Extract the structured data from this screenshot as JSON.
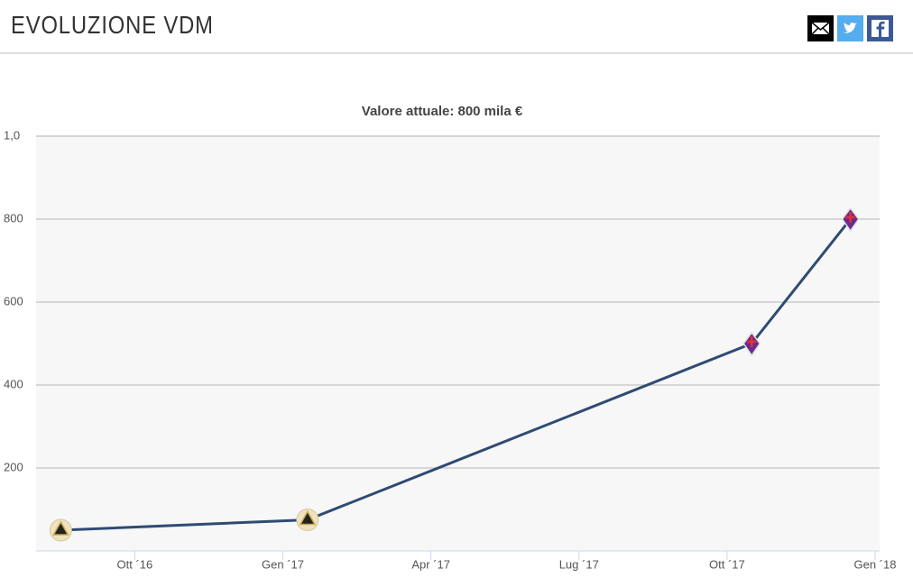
{
  "header": {
    "title": "EVOLUZIONE VDM"
  },
  "chart_data": {
    "type": "line",
    "title": "Valore attuale: 800 mila €",
    "x": [
      "2016-08",
      "2017-01",
      "2017-10",
      "2017-12"
    ],
    "series": [
      {
        "name": "VDM",
        "color": "#2f4b73",
        "values": [
          50,
          75,
          500,
          800
        ]
      }
    ],
    "xlim": [
      "2016-08",
      "2018-01"
    ],
    "xticks": [
      {
        "value": "2016-10",
        "label": "Ott ´16"
      },
      {
        "value": "2017-01",
        "label": "Gen ´17"
      },
      {
        "value": "2017-04",
        "label": "Apr ´17"
      },
      {
        "value": "2017-07",
        "label": "Lug ´17"
      },
      {
        "value": "2017-10",
        "label": "Ott ´17"
      },
      {
        "value": "2018-01",
        "label": "Gen ´18"
      }
    ],
    "ylim": [
      0,
      1000
    ],
    "yticks": [
      200,
      400,
      600,
      800,
      {
        "value": 1000,
        "label": "1,0"
      }
    ],
    "grid": true
  }
}
